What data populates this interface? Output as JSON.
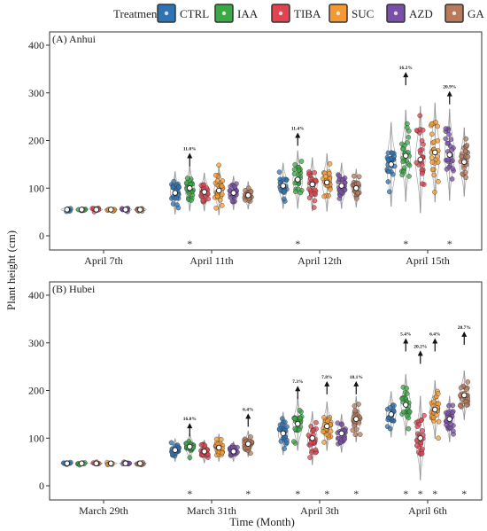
{
  "chart_data": {
    "type": "scatter",
    "ylabel": "Plant height (cm)",
    "xlabel": "Time (Month)",
    "legend": {
      "title": "Treatment",
      "placement": "top",
      "entries": [
        {
          "name": "CTRL",
          "color": "#2e74b5"
        },
        {
          "name": "IAA",
          "color": "#3aa845"
        },
        {
          "name": "TIBA",
          "color": "#e04450"
        },
        {
          "name": "SUC",
          "color": "#f59a32"
        },
        {
          "name": "AZD",
          "color": "#7b4fa8"
        },
        {
          "name": "GA",
          "color": "#b77b5c"
        }
      ]
    },
    "panels": [
      {
        "title": "(A) Anhui",
        "ylim": [
          0,
          400
        ],
        "yticks": [
          0,
          100,
          200,
          300,
          400
        ],
        "categories": [
          "April 7th",
          "April 11th",
          "April 12th",
          "April 15th"
        ],
        "medians": [
          [
            55,
            55,
            55,
            55,
            55,
            55
          ],
          [
            90,
            100,
            92,
            95,
            90,
            85
          ],
          [
            105,
            118,
            108,
            112,
            105,
            100
          ],
          [
            150,
            168,
            160,
            175,
            170,
            155
          ]
        ],
        "spreads": [
          [
            4,
            4,
            4,
            4,
            4,
            4
          ],
          [
            28,
            30,
            25,
            32,
            22,
            18
          ],
          [
            30,
            38,
            35,
            38,
            30,
            25
          ],
          [
            55,
            60,
            70,
            65,
            60,
            45
          ]
        ],
        "annotations": [
          {
            "category": 1,
            "series": 1,
            "label": "11.0%",
            "y": 172
          },
          {
            "category": 2,
            "series": 1,
            "label": "11.4%",
            "y": 215
          },
          {
            "category": 3,
            "series": 1,
            "label": "16.2%",
            "y": 342
          },
          {
            "category": 3,
            "series": 4,
            "label": "20.9%",
            "y": 302
          }
        ],
        "stars": [
          {
            "category": 1,
            "series": 1
          },
          {
            "category": 2,
            "series": 1
          },
          {
            "category": 3,
            "series": 1
          },
          {
            "category": 3,
            "series": 4
          }
        ]
      },
      {
        "title": "(B) Hubei",
        "ylim": [
          0,
          400
        ],
        "yticks": [
          0,
          100,
          200,
          300,
          400
        ],
        "categories": [
          "March 29th",
          "March 31th",
          "April 3th",
          "April 6th"
        ],
        "medians": [
          [
            47,
            47,
            47,
            47,
            47,
            47
          ],
          [
            75,
            82,
            72,
            80,
            72,
            88
          ],
          [
            110,
            130,
            100,
            125,
            110,
            140
          ],
          [
            150,
            170,
            100,
            160,
            140,
            190
          ]
        ],
        "spreads": [
          [
            3,
            3,
            3,
            3,
            3,
            3
          ],
          [
            15,
            18,
            15,
            18,
            13,
            17
          ],
          [
            28,
            35,
            35,
            32,
            25,
            30
          ],
          [
            30,
            40,
            55,
            38,
            30,
            32
          ]
        ],
        "annotations": [
          {
            "category": 1,
            "series": 1,
            "label": "16.0%",
            "y": 130
          },
          {
            "category": 1,
            "series": 5,
            "label": "6.4%",
            "y": 150
          },
          {
            "category": 2,
            "series": 1,
            "label": "7.3%",
            "y": 208
          },
          {
            "category": 2,
            "series": 3,
            "label": "7.8%",
            "y": 218
          },
          {
            "category": 2,
            "series": 5,
            "label": "18.1%",
            "y": 218
          },
          {
            "category": 3,
            "series": 1,
            "label": "5.4%",
            "y": 308
          },
          {
            "category": 3,
            "series": 2,
            "label": "20.2%",
            "y": 282
          },
          {
            "category": 3,
            "series": 3,
            "label": "6.4%",
            "y": 308
          },
          {
            "category": 3,
            "series": 5,
            "label": "20.7%",
            "y": 322
          }
        ],
        "stars": [
          {
            "category": 1,
            "series": 1
          },
          {
            "category": 1,
            "series": 5
          },
          {
            "category": 2,
            "series": 1
          },
          {
            "category": 2,
            "series": 3
          },
          {
            "category": 2,
            "series": 5
          },
          {
            "category": 3,
            "series": 1
          },
          {
            "category": 3,
            "series": 2
          },
          {
            "category": 3,
            "series": 3
          },
          {
            "category": 3,
            "series": 5
          }
        ]
      }
    ]
  }
}
